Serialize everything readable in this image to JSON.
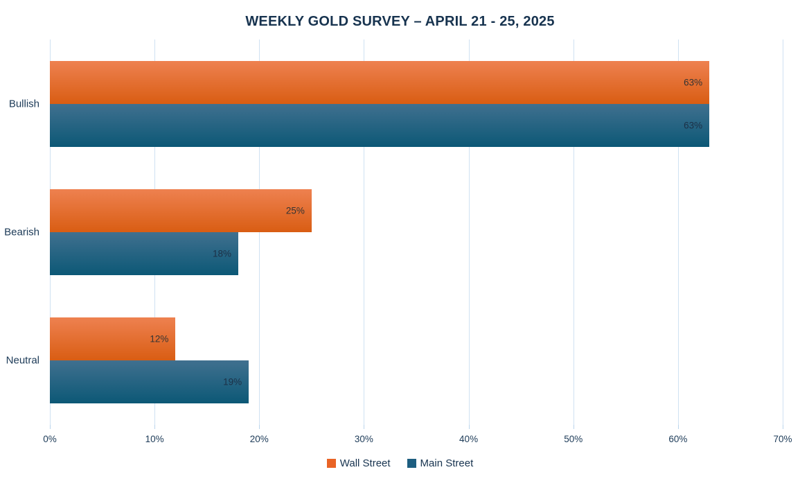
{
  "title": "WEEKLY GOLD SURVEY – APRIL 21 - 25, 2025",
  "colors": {
    "background": "#ffffff",
    "title": "#17334f",
    "axis_text": "#1c3a57",
    "gridline": "#cfe1f2"
  },
  "chart_data": {
    "type": "bar",
    "orientation": "horizontal",
    "title": "WEEKLY GOLD SURVEY – APRIL 21 - 25, 2025",
    "categories": [
      "Bullish",
      "Bearish",
      "Neutral"
    ],
    "series": [
      {
        "name": "Wall Street",
        "values": [
          63,
          25,
          12
        ],
        "color_top": "#ee8150",
        "color_bottom": "#d95d13",
        "legend_color": "#e96325",
        "value_label_color": "#333333"
      },
      {
        "name": "Main Street",
        "values": [
          63,
          18,
          19
        ],
        "color_top": "#40708f",
        "color_bottom": "#0c5876",
        "legend_color": "#1d5e80",
        "value_label_color": "#1c3046"
      }
    ],
    "value_suffix": "%",
    "data_labels": [
      [
        "63%",
        "25%",
        "12%"
      ],
      [
        "63%",
        "18%",
        "19%"
      ]
    ],
    "xlabel": "",
    "ylabel": "",
    "xlim": [
      0,
      70
    ],
    "x_tick_labels": [
      "0%",
      "10%",
      "20%",
      "30%",
      "40%",
      "50%",
      "60%",
      "70%"
    ],
    "grid": true,
    "legend_position": "bottom"
  }
}
